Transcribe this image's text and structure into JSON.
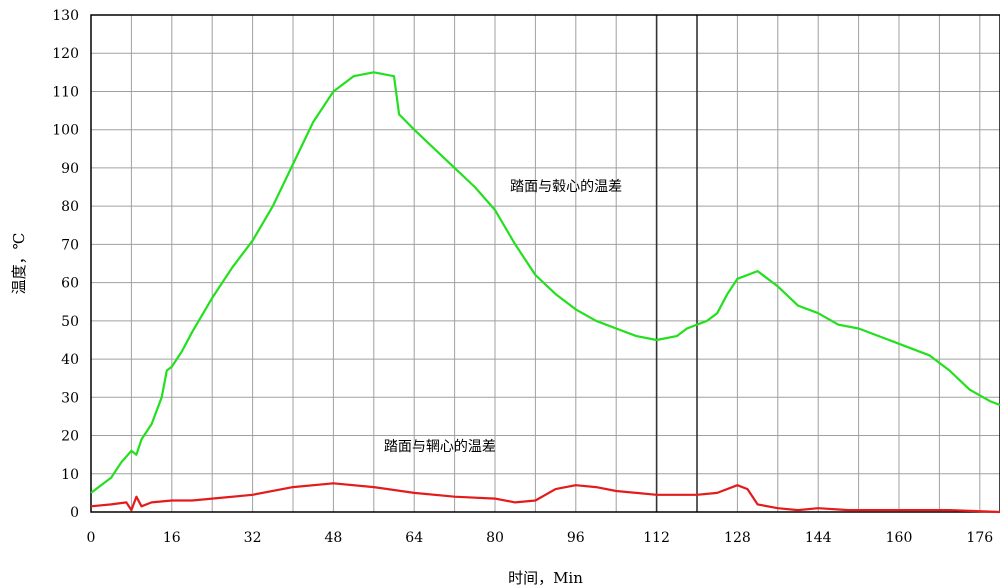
{
  "chart_data": {
    "type": "line",
    "xlabel": "时间，Min",
    "ylabel": "温度，℃",
    "xlim": [
      0,
      180
    ],
    "ylim": [
      0,
      130
    ],
    "x_ticks": [
      0,
      16,
      32,
      48,
      64,
      80,
      96,
      112,
      128,
      144,
      160,
      176
    ],
    "y_ticks": [
      0,
      10,
      20,
      30,
      40,
      50,
      60,
      70,
      80,
      90,
      100,
      110,
      120,
      130
    ],
    "grid": true,
    "vertical_markers": [
      112,
      120
    ],
    "annotations": [
      {
        "text": "踏面与毂心的温差",
        "x": 83,
        "y": 84
      },
      {
        "text": "踏面与辋心的温差",
        "x": 58,
        "y": 16
      }
    ],
    "series": [
      {
        "label": "踏面与毂心的温差",
        "color": "#22e01e",
        "points": [
          [
            0,
            5
          ],
          [
            2,
            7
          ],
          [
            4,
            9
          ],
          [
            6,
            13
          ],
          [
            8,
            16
          ],
          [
            9,
            15
          ],
          [
            10,
            19
          ],
          [
            12,
            23
          ],
          [
            14,
            30
          ],
          [
            15,
            37
          ],
          [
            16,
            38
          ],
          [
            18,
            42
          ],
          [
            20,
            47
          ],
          [
            24,
            56
          ],
          [
            28,
            64
          ],
          [
            32,
            71
          ],
          [
            36,
            80
          ],
          [
            40,
            91
          ],
          [
            44,
            102
          ],
          [
            48,
            110
          ],
          [
            52,
            114
          ],
          [
            56,
            115
          ],
          [
            60,
            114
          ],
          [
            61,
            104
          ],
          [
            64,
            100
          ],
          [
            68,
            95
          ],
          [
            72,
            90
          ],
          [
            76,
            85
          ],
          [
            80,
            79
          ],
          [
            84,
            70
          ],
          [
            88,
            62
          ],
          [
            92,
            57
          ],
          [
            96,
            53
          ],
          [
            100,
            50
          ],
          [
            104,
            48
          ],
          [
            108,
            46
          ],
          [
            112,
            45
          ],
          [
            116,
            46
          ],
          [
            118,
            48
          ],
          [
            122,
            50
          ],
          [
            124,
            52
          ],
          [
            126,
            57
          ],
          [
            128,
            61
          ],
          [
            132,
            63
          ],
          [
            136,
            59
          ],
          [
            140,
            54
          ],
          [
            144,
            52
          ],
          [
            148,
            49
          ],
          [
            152,
            48
          ],
          [
            156,
            46
          ],
          [
            160,
            44
          ],
          [
            166,
            41
          ],
          [
            170,
            37
          ],
          [
            174,
            32
          ],
          [
            178,
            29
          ],
          [
            180,
            28
          ]
        ]
      },
      {
        "label": "踏面与辋心的温差",
        "color": "#e41b1b",
        "points": [
          [
            0,
            1.5
          ],
          [
            4,
            2
          ],
          [
            7,
            2.5
          ],
          [
            8,
            0.5
          ],
          [
            9,
            4
          ],
          [
            10,
            1.5
          ],
          [
            12,
            2.5
          ],
          [
            16,
            3
          ],
          [
            20,
            3
          ],
          [
            24,
            3.5
          ],
          [
            32,
            4.5
          ],
          [
            40,
            6.5
          ],
          [
            48,
            7.5
          ],
          [
            56,
            6.5
          ],
          [
            64,
            5
          ],
          [
            72,
            4
          ],
          [
            80,
            3.5
          ],
          [
            84,
            2.5
          ],
          [
            88,
            3
          ],
          [
            92,
            6
          ],
          [
            96,
            7
          ],
          [
            100,
            6.5
          ],
          [
            104,
            5.5
          ],
          [
            108,
            5
          ],
          [
            112,
            4.5
          ],
          [
            120,
            4.5
          ],
          [
            124,
            5
          ],
          [
            128,
            7
          ],
          [
            130,
            6
          ],
          [
            132,
            2
          ],
          [
            136,
            1
          ],
          [
            140,
            0.5
          ],
          [
            144,
            1
          ],
          [
            150,
            0.5
          ],
          [
            160,
            0.5
          ],
          [
            170,
            0.5
          ],
          [
            180,
            0
          ]
        ]
      }
    ]
  }
}
